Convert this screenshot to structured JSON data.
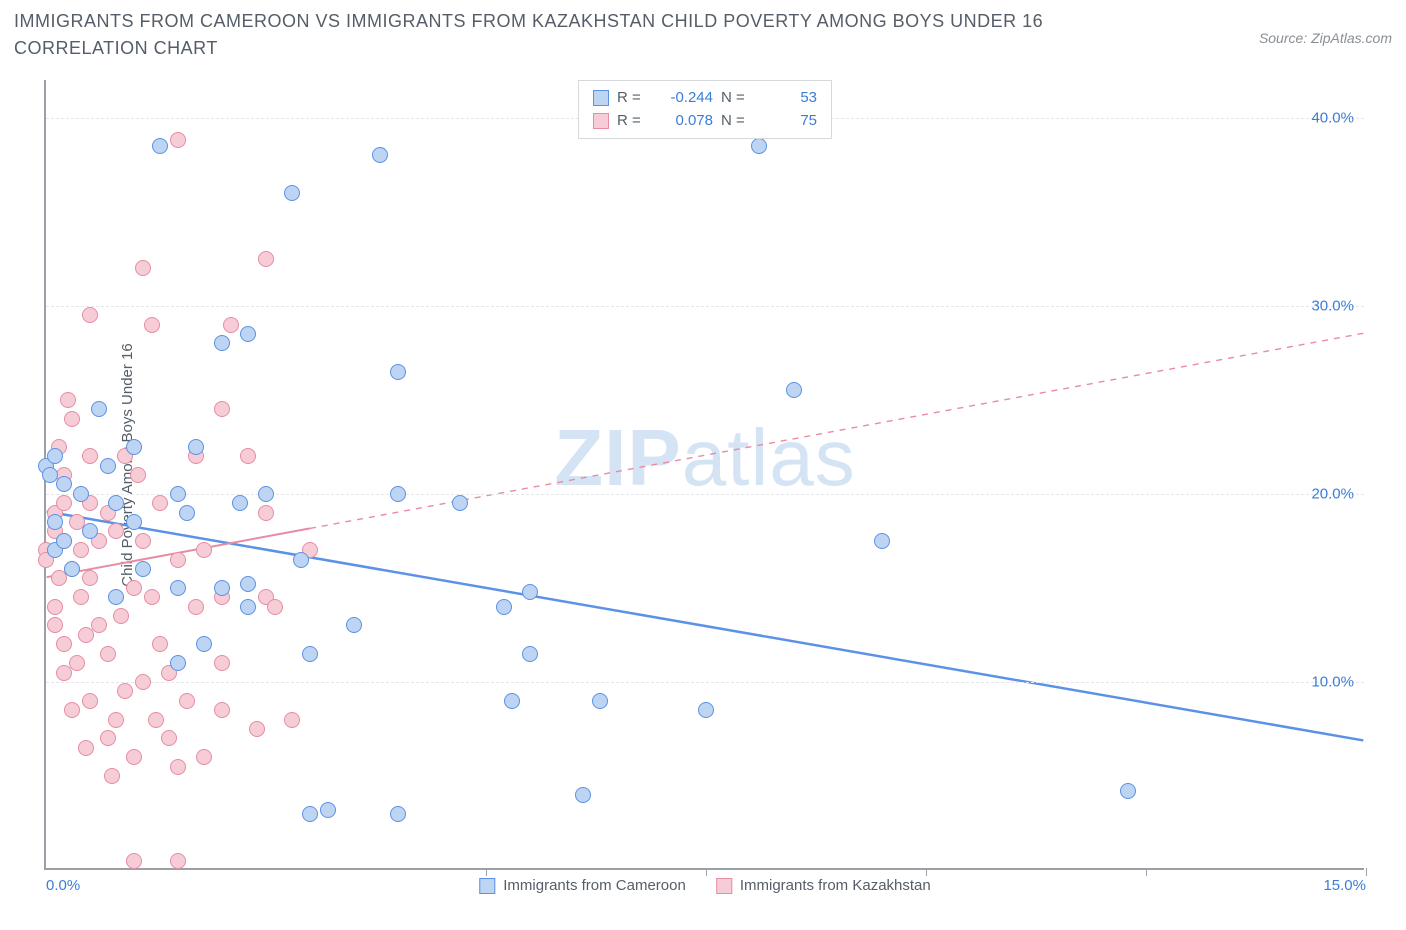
{
  "title": "IMMIGRANTS FROM CAMEROON VS IMMIGRANTS FROM KAZAKHSTAN CHILD POVERTY AMONG BOYS UNDER 16 CORRELATION CHART",
  "source_prefix": "Source: ",
  "source_name": "ZipAtlas.com",
  "ylabel": "Child Poverty Among Boys Under 16",
  "watermark_bold": "ZIP",
  "watermark_rest": "atlas",
  "chart": {
    "type": "scatter",
    "background_color": "#ffffff",
    "grid_color": "#e4e6e9",
    "axis_color": "#9aa0a6",
    "tick_label_color": "#3b7dd8",
    "xlim": [
      0,
      15
    ],
    "ylim": [
      0,
      42
    ],
    "xticks": [
      0.0,
      5.0,
      7.5,
      10.0,
      12.5,
      15.0
    ],
    "xtick_labels": {
      "0": "0.0%",
      "15": "15.0%"
    },
    "xtick_marks": [
      5.0,
      7.5,
      10.0,
      12.5,
      15.0
    ],
    "yticks": [
      10.0,
      20.0,
      30.0,
      40.0
    ],
    "ytick_labels": [
      "10.0%",
      "20.0%",
      "30.0%",
      "40.0%"
    ],
    "point_radius": 8,
    "point_border_width": 1.5,
    "point_fill_opacity": 0.25,
    "title_fontsize": 18,
    "label_fontsize": 15
  },
  "series": [
    {
      "name": "Immigrants from Cameroon",
      "color": "#5b92e5",
      "fill": "#bdd4f2",
      "R": "-0.244",
      "N": "53",
      "regression": {
        "x1": 0,
        "y1": 19.0,
        "x2": 15,
        "y2": 6.8,
        "width": 2.5,
        "solid_until_x": 15
      },
      "points": [
        [
          0.0,
          21.5
        ],
        [
          0.05,
          21.0
        ],
        [
          0.1,
          18.5
        ],
        [
          0.1,
          22.0
        ],
        [
          0.1,
          17.0
        ],
        [
          0.2,
          17.5
        ],
        [
          0.2,
          20.5
        ],
        [
          0.6,
          24.5
        ],
        [
          0.7,
          21.5
        ],
        [
          0.8,
          14.5
        ],
        [
          1.0,
          18.5
        ],
        [
          1.0,
          22.5
        ],
        [
          1.1,
          16.0
        ],
        [
          1.3,
          38.5
        ],
        [
          1.5,
          20.0
        ],
        [
          1.5,
          15.0
        ],
        [
          1.6,
          19.0
        ],
        [
          1.7,
          22.5
        ],
        [
          1.8,
          12.0
        ],
        [
          2.0,
          28.0
        ],
        [
          2.2,
          19.5
        ],
        [
          2.3,
          14.0
        ],
        [
          2.3,
          15.2
        ],
        [
          2.3,
          28.5
        ],
        [
          2.5,
          20.0
        ],
        [
          2.8,
          36.0
        ],
        [
          2.9,
          16.5
        ],
        [
          3.0,
          11.5
        ],
        [
          3.0,
          3.0
        ],
        [
          3.2,
          3.2
        ],
        [
          3.5,
          13.0
        ],
        [
          3.8,
          38.0
        ],
        [
          4.0,
          3.0
        ],
        [
          4.0,
          26.5
        ],
        [
          4.0,
          20.0
        ],
        [
          4.7,
          19.5
        ],
        [
          5.2,
          14.0
        ],
        [
          5.3,
          9.0
        ],
        [
          5.5,
          14.8
        ],
        [
          5.5,
          11.5
        ],
        [
          6.1,
          4.0
        ],
        [
          6.3,
          9.0
        ],
        [
          7.5,
          8.5
        ],
        [
          8.1,
          38.5
        ],
        [
          8.5,
          25.5
        ],
        [
          9.5,
          17.5
        ],
        [
          12.3,
          4.2
        ],
        [
          2.0,
          15.0
        ],
        [
          1.5,
          11.0
        ],
        [
          0.8,
          19.5
        ],
        [
          0.5,
          18.0
        ],
        [
          0.3,
          16.0
        ],
        [
          0.4,
          20.0
        ]
      ]
    },
    {
      "name": "Immigrants from Kazakhstan",
      "color": "#e68ca3",
      "fill": "#f6cdd7",
      "R": "0.078",
      "N": "75",
      "regression": {
        "x1": 0,
        "y1": 15.5,
        "x2": 15,
        "y2": 28.5,
        "width": 2,
        "solid_until_x": 3.0
      },
      "points": [
        [
          0.0,
          17.0
        ],
        [
          0.0,
          16.5
        ],
        [
          0.1,
          14.0
        ],
        [
          0.1,
          13.0
        ],
        [
          0.1,
          19.0
        ],
        [
          0.1,
          18.0
        ],
        [
          0.15,
          22.5
        ],
        [
          0.15,
          15.5
        ],
        [
          0.2,
          10.5
        ],
        [
          0.2,
          12.0
        ],
        [
          0.2,
          17.5
        ],
        [
          0.2,
          19.5
        ],
        [
          0.2,
          21.0
        ],
        [
          0.25,
          25.0
        ],
        [
          0.3,
          24.0
        ],
        [
          0.3,
          16.0
        ],
        [
          0.3,
          8.5
        ],
        [
          0.35,
          11.0
        ],
        [
          0.35,
          18.5
        ],
        [
          0.4,
          14.5
        ],
        [
          0.4,
          17.0
        ],
        [
          0.45,
          6.5
        ],
        [
          0.45,
          12.5
        ],
        [
          0.5,
          29.5
        ],
        [
          0.5,
          22.0
        ],
        [
          0.5,
          19.5
        ],
        [
          0.5,
          15.5
        ],
        [
          0.5,
          9.0
        ],
        [
          0.6,
          13.0
        ],
        [
          0.6,
          17.5
        ],
        [
          0.7,
          11.5
        ],
        [
          0.7,
          7.0
        ],
        [
          0.7,
          19.0
        ],
        [
          0.75,
          5.0
        ],
        [
          0.8,
          8.0
        ],
        [
          0.8,
          18.0
        ],
        [
          0.85,
          13.5
        ],
        [
          0.9,
          9.5
        ],
        [
          0.9,
          22.0
        ],
        [
          1.0,
          6.0
        ],
        [
          1.0,
          15.0
        ],
        [
          1.0,
          0.5
        ],
        [
          1.05,
          21.0
        ],
        [
          1.1,
          32.0
        ],
        [
          1.1,
          17.5
        ],
        [
          1.1,
          10.0
        ],
        [
          1.2,
          14.5
        ],
        [
          1.2,
          29.0
        ],
        [
          1.25,
          8.0
        ],
        [
          1.3,
          12.0
        ],
        [
          1.3,
          19.5
        ],
        [
          1.4,
          10.5
        ],
        [
          1.4,
          7.0
        ],
        [
          1.5,
          38.8
        ],
        [
          1.5,
          16.5
        ],
        [
          1.5,
          5.5
        ],
        [
          1.5,
          0.5
        ],
        [
          1.6,
          9.0
        ],
        [
          1.7,
          22.0
        ],
        [
          1.7,
          14.0
        ],
        [
          1.8,
          17.0
        ],
        [
          1.8,
          6.0
        ],
        [
          2.0,
          11.0
        ],
        [
          2.0,
          24.5
        ],
        [
          2.0,
          14.5
        ],
        [
          2.0,
          8.5
        ],
        [
          2.1,
          29.0
        ],
        [
          2.3,
          22.0
        ],
        [
          2.4,
          7.5
        ],
        [
          2.5,
          14.5
        ],
        [
          2.5,
          32.5
        ],
        [
          2.5,
          19.0
        ],
        [
          2.6,
          14.0
        ],
        [
          2.8,
          8.0
        ],
        [
          3.0,
          17.0
        ]
      ]
    }
  ],
  "legend_rn_labels": {
    "R": "R =",
    "N": "N ="
  },
  "bottom_legend_labels": [
    "Immigrants from Cameroon",
    "Immigrants from Kazakhstan"
  ]
}
